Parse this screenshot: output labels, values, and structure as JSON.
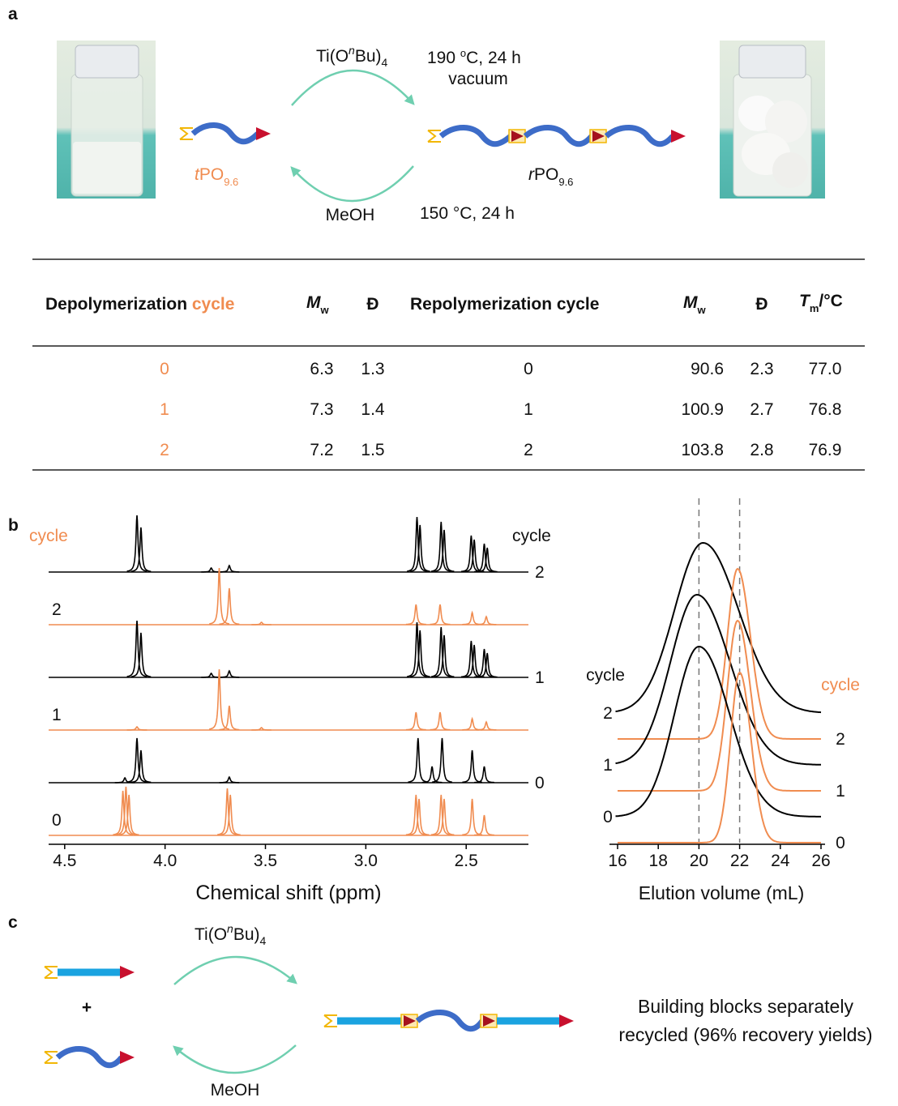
{
  "panel_labels": [
    "a",
    "b",
    "c"
  ],
  "scheme_a": {
    "catalyst": [
      "Ti(O",
      "n",
      "Bu)",
      "4"
    ],
    "forward_conditions": [
      "190 ",
      "o",
      "C, 24 h"
    ],
    "vacuum": "vacuum",
    "reverse_reagent": "MeOH",
    "reverse_conditions": "150 °C, 24 h",
    "left_polymer": [
      "t",
      "PO",
      "9.6"
    ],
    "right_polymer": [
      "r",
      "PO",
      "9.6"
    ]
  },
  "table": {
    "header": [
      [
        "Depolymerization",
        " cycle"
      ],
      [
        "M",
        "w"
      ],
      [
        "Đ"
      ],
      [
        "Repolymerization cycle"
      ],
      [
        "M",
        "w"
      ],
      [
        "Đ"
      ],
      [
        "T",
        "m",
        "/°C"
      ]
    ],
    "rows": [
      [
        "0",
        "6.3",
        "1.3",
        "0",
        "90.6",
        "2.3",
        "77.0"
      ],
      [
        "1",
        "7.3",
        "1.4",
        "1",
        "100.9",
        "2.7",
        "76.8"
      ],
      [
        "2",
        "7.2",
        "1.5",
        "2",
        "103.8",
        "2.8",
        "76.9"
      ]
    ]
  },
  "nmr": {
    "xlabel": "Chemical shift (ppm)",
    "xlim": [
      4.58,
      2.19
    ],
    "xticks": [
      4.5,
      {
        "value": 4,
        "label": "4.0"
      },
      3.5,
      {
        "value": 3,
        "label": "3.0"
      },
      2.5
    ],
    "left_heading": "cycle",
    "right_heading": "cycle",
    "traces": [
      {
        "label": "2",
        "color": "#000000",
        "peaks": [
          {
            "ppm": 4.14,
            "height": 70
          },
          {
            "ppm": 4.12,
            "height": 55
          },
          {
            "ppm": 3.77,
            "height": 5
          },
          {
            "ppm": 3.68,
            "height": 8
          },
          {
            "ppm": 2.745,
            "height": 68
          },
          {
            "ppm": 2.73,
            "height": 58
          },
          {
            "ppm": 2.625,
            "height": 62
          },
          {
            "ppm": 2.61,
            "height": 52
          },
          {
            "ppm": 2.475,
            "height": 45
          },
          {
            "ppm": 2.46,
            "height": 40
          },
          {
            "ppm": 2.41,
            "height": 35
          },
          {
            "ppm": 2.395,
            "height": 30
          }
        ]
      },
      {
        "label": "2",
        "color": "#f08c50",
        "peaks": [
          {
            "ppm": 3.73,
            "height": 70
          },
          {
            "ppm": 3.68,
            "height": 45
          },
          {
            "ppm": 3.52,
            "height": 3
          },
          {
            "ppm": 2.75,
            "height": 25
          },
          {
            "ppm": 2.63,
            "height": 25
          },
          {
            "ppm": 2.47,
            "height": 15
          },
          {
            "ppm": 2.4,
            "height": 10
          }
        ]
      },
      {
        "label": "1",
        "color": "#000000",
        "peaks": [
          {
            "ppm": 4.14,
            "height": 70
          },
          {
            "ppm": 4.12,
            "height": 55
          },
          {
            "ppm": 3.77,
            "height": 5
          },
          {
            "ppm": 3.68,
            "height": 8
          },
          {
            "ppm": 2.745,
            "height": 68
          },
          {
            "ppm": 2.73,
            "height": 58
          },
          {
            "ppm": 2.625,
            "height": 62
          },
          {
            "ppm": 2.61,
            "height": 52
          },
          {
            "ppm": 2.475,
            "height": 45
          },
          {
            "ppm": 2.46,
            "height": 40
          },
          {
            "ppm": 2.41,
            "height": 35
          },
          {
            "ppm": 2.395,
            "height": 30
          }
        ]
      },
      {
        "label": "1",
        "color": "#f08c50",
        "peaks": [
          {
            "ppm": 4.14,
            "height": 4
          },
          {
            "ppm": 3.73,
            "height": 75
          },
          {
            "ppm": 3.68,
            "height": 30
          },
          {
            "ppm": 3.52,
            "height": 3
          },
          {
            "ppm": 2.75,
            "height": 22
          },
          {
            "ppm": 2.63,
            "height": 22
          },
          {
            "ppm": 2.47,
            "height": 14
          },
          {
            "ppm": 2.4,
            "height": 10
          }
        ]
      },
      {
        "label": "0",
        "color": "#000000",
        "peaks": [
          {
            "ppm": 4.2,
            "height": 6
          },
          {
            "ppm": 4.14,
            "height": 55
          },
          {
            "ppm": 4.12,
            "height": 40
          },
          {
            "ppm": 3.68,
            "height": 7
          },
          {
            "ppm": 2.74,
            "height": 55
          },
          {
            "ppm": 2.67,
            "height": 20
          },
          {
            "ppm": 2.62,
            "height": 55
          },
          {
            "ppm": 2.47,
            "height": 40
          },
          {
            "ppm": 2.41,
            "height": 20
          }
        ]
      },
      {
        "label": "0",
        "color": "#f08c50",
        "peaks": [
          {
            "ppm": 4.21,
            "height": 55
          },
          {
            "ppm": 4.195,
            "height": 60
          },
          {
            "ppm": 4.18,
            "height": 50
          },
          {
            "ppm": 3.69,
            "height": 58
          },
          {
            "ppm": 3.675,
            "height": 50
          },
          {
            "ppm": 2.75,
            "height": 50
          },
          {
            "ppm": 2.735,
            "height": 45
          },
          {
            "ppm": 2.625,
            "height": 50
          },
          {
            "ppm": 2.61,
            "height": 45
          },
          {
            "ppm": 2.47,
            "height": 45
          },
          {
            "ppm": 2.41,
            "height": 25
          }
        ]
      }
    ]
  },
  "gpc": {
    "xlabel": "Elution volume (mL)",
    "xlim": [
      16,
      26
    ],
    "xticks": [
      16,
      18,
      20,
      22,
      24,
      26
    ],
    "reference_lines": [
      20,
      22
    ],
    "left_heading": "cycle",
    "right_heading": "cycle",
    "traces": [
      {
        "label": "2",
        "color": "#000000",
        "peak": 20.2,
        "width": 1.4
      },
      {
        "label": "2",
        "color": "#f08c50",
        "peak": 21.9,
        "width": 0.5
      },
      {
        "label": "1",
        "color": "#000000",
        "peak": 19.9,
        "width": 1.3
      },
      {
        "label": "1",
        "color": "#f08c50",
        "peak": 21.9,
        "width": 0.5
      },
      {
        "label": "0",
        "color": "#000000",
        "peak": 20.0,
        "width": 1.2
      },
      {
        "label": "0",
        "color": "#f08c50",
        "peak": 22.0,
        "width": 0.45
      }
    ]
  },
  "scheme_c": {
    "catalyst": [
      "Ti(O",
      "n",
      "Bu)",
      "4"
    ],
    "reagent": "MeOH",
    "plus": "+",
    "caption": [
      "Building blocks separately",
      "recycled (96% recovery yields)"
    ]
  }
}
